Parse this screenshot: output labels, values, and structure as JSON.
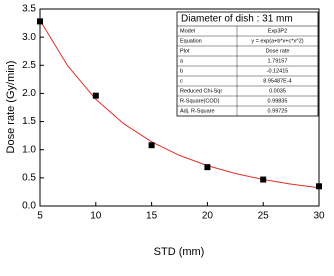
{
  "chart_data": {
    "type": "scatter",
    "x_label": "STD (mm)",
    "y_label": "Dose rate (Gy/min)",
    "xlim": [
      5,
      30
    ],
    "ylim": [
      0,
      3.5
    ],
    "xticks": [
      5,
      10,
      15,
      20,
      25,
      30
    ],
    "yticks": [
      {
        "value": 0,
        "label": "0.0"
      },
      {
        "value": 0.5,
        "label": "0.5"
      },
      {
        "value": 1,
        "label": "1.0"
      },
      {
        "value": 1.5,
        "label": "1.5"
      },
      {
        "value": 2,
        "label": "2.0"
      },
      {
        "value": 2.5,
        "label": "2.5"
      },
      {
        "value": 3,
        "label": "3.0"
      },
      {
        "value": 3.5,
        "label": "3.5"
      }
    ],
    "series": [
      {
        "marker": "square",
        "color": "#000000",
        "x": [
          5,
          10,
          15,
          20,
          25,
          30
        ],
        "values": [
          3.28,
          1.96,
          1.08,
          0.69,
          0.47,
          0.35
        ]
      },
      {
        "marker": "line",
        "color": "#e0302a",
        "x": [
          5,
          7.5,
          10,
          12.5,
          15,
          17.5,
          20,
          22.5,
          25,
          27.5,
          30
        ],
        "values": [
          3.297,
          2.486,
          1.896,
          1.462,
          1.14,
          0.899,
          0.717,
          0.578,
          0.471,
          0.389,
          0.324
        ]
      }
    ],
    "inset_table": {
      "title": "Diameter of dish : 31 mm",
      "rows": [
        [
          "Model",
          "Exp3P2"
        ],
        [
          "Equation",
          "y = exp(a+b*x+c*x^2)"
        ],
        [
          "Plot",
          "Dose rate"
        ],
        [
          "a",
          "1.79157"
        ],
        [
          "b",
          "-0.12415"
        ],
        [
          "c",
          "8.95487E-4"
        ],
        [
          "Reduced Chi-Sqr",
          "0.0035"
        ],
        [
          "R-Square(COD)",
          "0.99835"
        ],
        [
          "Adj. R-Square",
          "0.99725"
        ]
      ]
    }
  }
}
